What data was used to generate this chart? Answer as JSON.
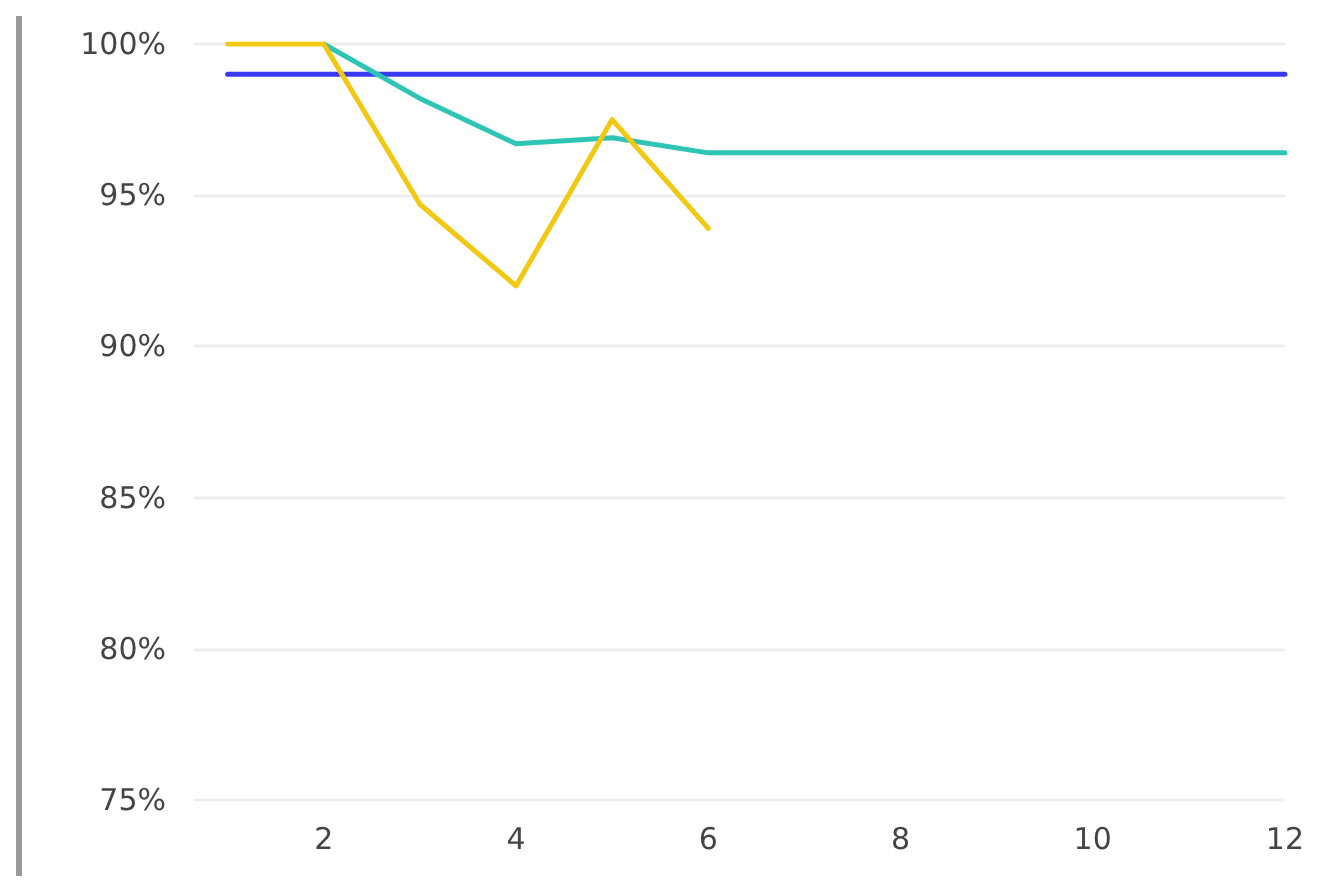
{
  "chart_data": {
    "type": "line",
    "x": [
      1,
      2,
      3,
      4,
      5,
      6,
      7,
      8,
      9,
      10,
      11,
      12
    ],
    "series": [
      {
        "color": "#3a3af2",
        "values": [
          99,
          99,
          99,
          99,
          99,
          99,
          99,
          99,
          99,
          99,
          99,
          99
        ]
      },
      {
        "color": "#2ec4b6",
        "values": [
          null,
          100,
          98.2,
          96.7,
          96.9,
          96.4,
          96.4,
          96.4,
          96.4,
          96.4,
          96.4,
          96.4
        ]
      },
      {
        "color": "#f2c811",
        "values": [
          100,
          100,
          94.7,
          92,
          97.5,
          93.9,
          null,
          null,
          null,
          null,
          null,
          null
        ]
      }
    ],
    "xlim": [
      0.65,
      12
    ],
    "xticks": [
      2,
      4,
      6,
      8,
      10,
      12
    ],
    "ylim": [
      75,
      100
    ],
    "yticks": [
      {
        "value": 75,
        "label": "75%"
      },
      {
        "value": 80,
        "label": "80%"
      },
      {
        "value": 85,
        "label": "85%"
      },
      {
        "value": 90,
        "label": "90%"
      },
      {
        "value": 95,
        "label": "95%"
      },
      {
        "value": 100,
        "label": "100%"
      }
    ],
    "grid": "y",
    "marker": "none",
    "line_style": "solid"
  }
}
